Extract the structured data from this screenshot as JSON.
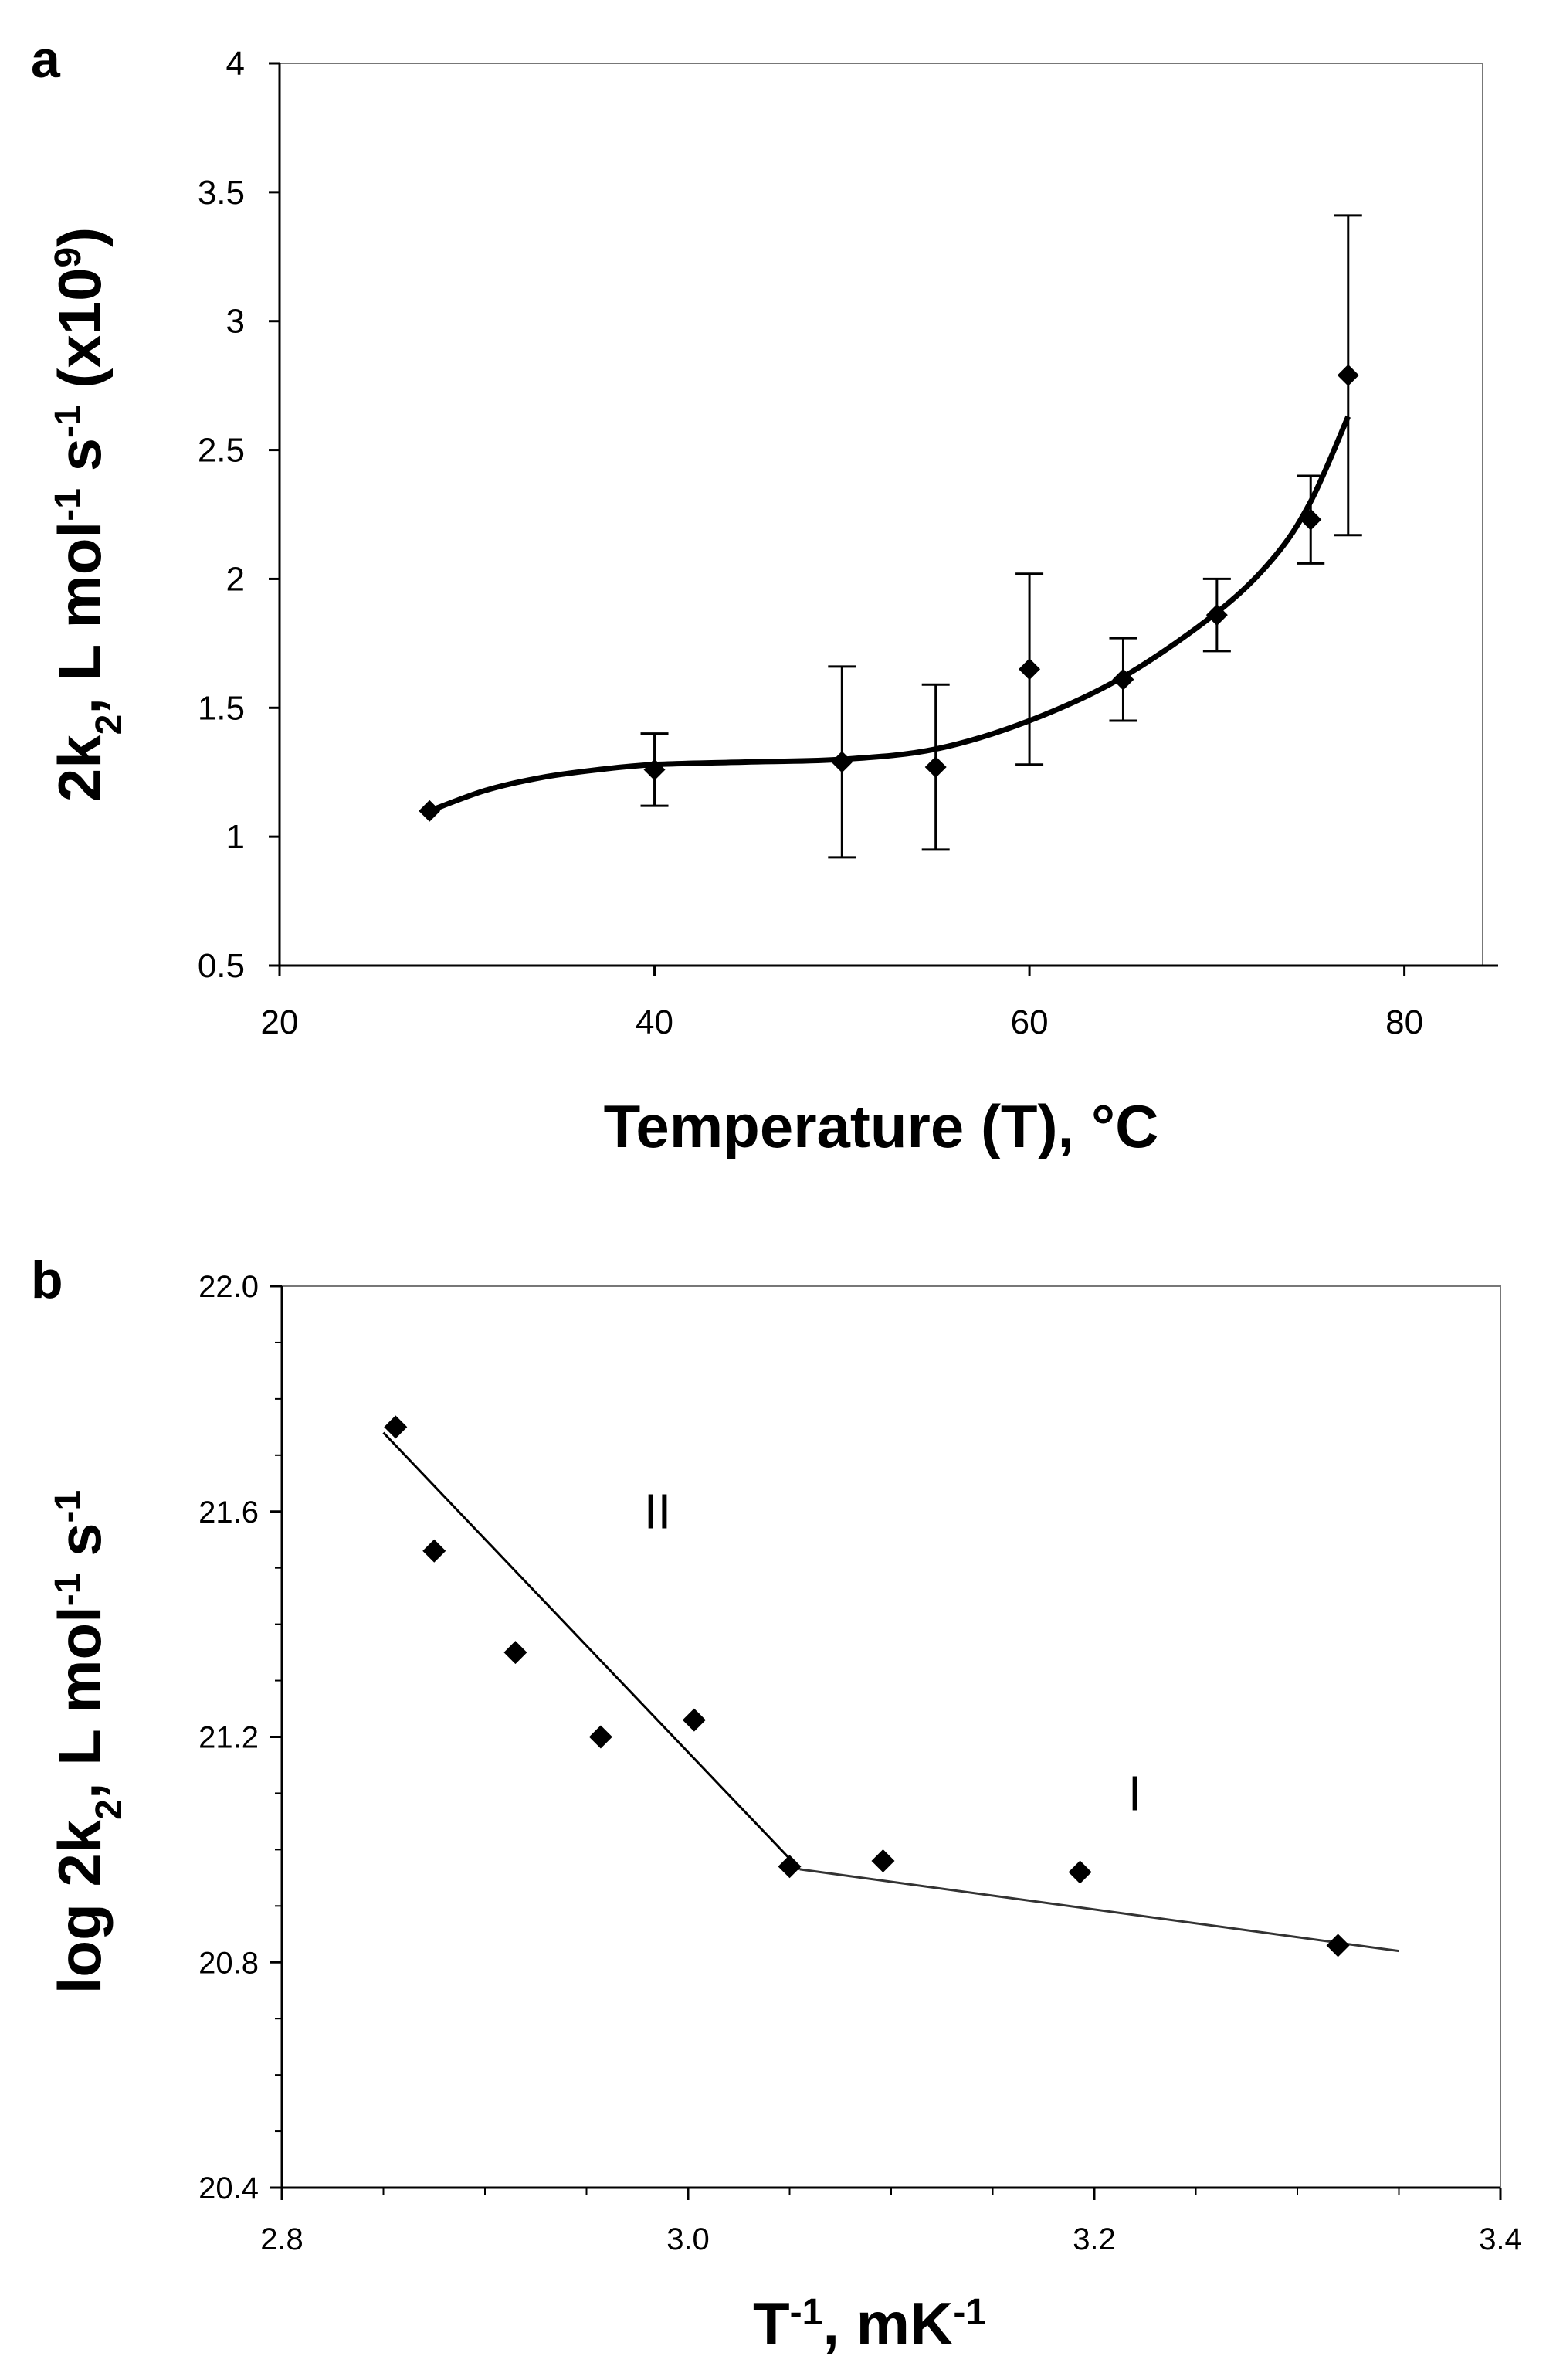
{
  "chart_data": [
    {
      "type": "scatter",
      "panel_label": "a",
      "title": "",
      "xlabel": "Temperature (T), °C",
      "ylabel_main": "2k",
      "ylabel_sub": "2",
      "ylabel_rest": ", L mol",
      "ylabel_sup1": "-1",
      "ylabel_s": " s",
      "ylabel_sup2": "-1",
      "ylabel_mult": " (x10",
      "ylabel_sup3": "9",
      "ylabel_close": ")",
      "xlim": [
        20,
        85
      ],
      "ylim": [
        0.5,
        4
      ],
      "xticks": [
        20,
        40,
        60,
        80
      ],
      "xtick_labels": [
        "20",
        "40",
        "60",
        "80"
      ],
      "yticks": [
        0.5,
        1,
        1.5,
        2,
        2.5,
        3,
        3.5,
        4
      ],
      "ytick_labels": [
        "0.5",
        "1",
        "1.5",
        "2",
        "2.5",
        "3",
        "3.5",
        "4"
      ],
      "points": [
        {
          "x": 28,
          "y": 1.1,
          "err": 0.02
        },
        {
          "x": 40,
          "y": 1.26,
          "err": 0.14
        },
        {
          "x": 50,
          "y": 1.29,
          "err": 0.37
        },
        {
          "x": 55,
          "y": 1.27,
          "err": 0.32
        },
        {
          "x": 60,
          "y": 1.65,
          "err": 0.37
        },
        {
          "x": 65,
          "y": 1.61,
          "err": 0.16
        },
        {
          "x": 70,
          "y": 1.86,
          "err": 0.14
        },
        {
          "x": 75,
          "y": 2.23,
          "err": 0.17
        },
        {
          "x": 77,
          "y": 2.79,
          "err": 0.62
        }
      ],
      "fit_curve": [
        {
          "x": 28,
          "y": 1.1
        },
        {
          "x": 31,
          "y": 1.18
        },
        {
          "x": 34,
          "y": 1.23
        },
        {
          "x": 37,
          "y": 1.26
        },
        {
          "x": 40,
          "y": 1.28
        },
        {
          "x": 45,
          "y": 1.29
        },
        {
          "x": 50,
          "y": 1.3
        },
        {
          "x": 55,
          "y": 1.34
        },
        {
          "x": 60,
          "y": 1.45
        },
        {
          "x": 65,
          "y": 1.62
        },
        {
          "x": 70,
          "y": 1.87
        },
        {
          "x": 73,
          "y": 2.08
        },
        {
          "x": 75,
          "y": 2.3
        },
        {
          "x": 77,
          "y": 2.63
        }
      ]
    },
    {
      "type": "scatter",
      "panel_label": "b",
      "title": "",
      "xlabel_main": "T",
      "xlabel_sup1": "-1",
      "xlabel_rest": ", mK",
      "xlabel_sup2": "-1",
      "ylabel_main": "log 2k",
      "ylabel_sub": "2",
      "ylabel_rest": ", L mol",
      "ylabel_sup1": "-1",
      "ylabel_s": " s",
      "ylabel_sup2": "-1",
      "xlim": [
        2.8,
        3.4
      ],
      "ylim": [
        20.4,
        22.0
      ],
      "xticks": [
        2.8,
        3.0,
        3.2,
        3.4
      ],
      "xtick_labels": [
        "2.8",
        "3.0",
        "3.2",
        "3.4"
      ],
      "yticks": [
        20.4,
        20.8,
        21.2,
        21.6,
        22.0
      ],
      "ytick_labels": [
        "20.4",
        "20.8",
        "21.2",
        "21.6",
        "22.0"
      ],
      "points": [
        {
          "x": 2.856,
          "y": 21.75
        },
        {
          "x": 2.875,
          "y": 21.53
        },
        {
          "x": 2.915,
          "y": 21.35
        },
        {
          "x": 2.957,
          "y": 21.2
        },
        {
          "x": 3.003,
          "y": 21.23
        },
        {
          "x": 3.05,
          "y": 20.97
        },
        {
          "x": 3.096,
          "y": 20.98
        },
        {
          "x": 3.193,
          "y": 20.96
        },
        {
          "x": 3.32,
          "y": 20.83
        }
      ],
      "lines": [
        {
          "name": "II",
          "from": {
            "x": 2.85,
            "y": 21.74
          },
          "to": {
            "x": 3.055,
            "y": 20.965
          }
        },
        {
          "name": "I",
          "from": {
            "x": 3.055,
            "y": 20.965
          },
          "to": {
            "x": 3.35,
            "y": 20.82
          }
        }
      ],
      "annotations": [
        {
          "text": "II",
          "x": 2.985,
          "y": 21.57
        },
        {
          "text": "I",
          "x": 3.22,
          "y": 21.07
        }
      ]
    }
  ]
}
